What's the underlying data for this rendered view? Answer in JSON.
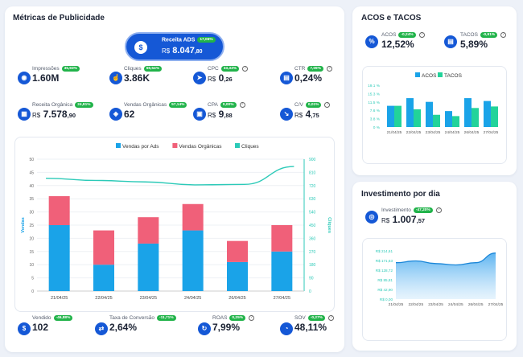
{
  "metrics_card": {
    "title": "Métricas de Publicidade"
  },
  "receita_ads": {
    "label": "Receita ADS",
    "badge": "17,06%",
    "currency": "R$",
    "int": "8.047",
    "dec": ",80"
  },
  "metrics": [
    {
      "id": "impressoes",
      "label": "Impressões",
      "badge": "35,93%",
      "currency": "",
      "int": "1.60M",
      "dec": "",
      "help": false,
      "icon": "eye-icon",
      "glyph": "◉"
    },
    {
      "id": "cliques",
      "label": "Cliques",
      "badge": "69,54%",
      "currency": "",
      "int": "3.86K",
      "dec": "",
      "help": false,
      "icon": "hand-pointer-icon",
      "glyph": "☝"
    },
    {
      "id": "cpc",
      "label": "CPC",
      "badge": "33,33%",
      "currency": "R$",
      "int": "0",
      "dec": ",26",
      "help": true,
      "icon": "cursor-icon",
      "glyph": "➤"
    },
    {
      "id": "ctr",
      "label": "CTR",
      "badge": "7,09%",
      "currency": "",
      "int": "0,24%",
      "dec": "",
      "help": true,
      "icon": "clipboard-icon",
      "glyph": "▤"
    },
    {
      "id": "receita_organica",
      "label": "Receita Orgânica",
      "badge": "24,81%",
      "currency": "R$",
      "int": "7.578",
      "dec": ",90",
      "help": false,
      "icon": "receipt-icon",
      "glyph": "▦"
    },
    {
      "id": "vendas_organicas",
      "label": "Vendas Orgânicas",
      "badge": "57,14%",
      "currency": "",
      "int": "62",
      "dec": "",
      "help": false,
      "icon": "tag-icon",
      "glyph": "◈"
    },
    {
      "id": "cpa",
      "label": "CPA",
      "badge": "0,00%",
      "currency": "R$",
      "int": "9",
      "dec": ",88",
      "help": true,
      "icon": "cart-icon",
      "glyph": "▣"
    },
    {
      "id": "cv",
      "label": "C/V",
      "badge": "0,01%",
      "currency": "R$",
      "int": "4",
      "dec": ",75",
      "help": true,
      "icon": "trend-icon",
      "glyph": "↘"
    }
  ],
  "bottom_metrics": [
    {
      "id": "vendido",
      "label": "Vendido",
      "badge": "-46,88%",
      "value": "102",
      "help": false,
      "icon": "money-icon",
      "glyph": "$"
    },
    {
      "id": "taxa_conversao",
      "label": "Taxa de Conversão",
      "badge": "-11,71%",
      "value": "2,64%",
      "help": false,
      "icon": "transfer-icon",
      "glyph": "⇄"
    },
    {
      "id": "roas",
      "label": "ROAS",
      "badge": "0,25%",
      "value": "7,99%",
      "help": true,
      "icon": "refresh-icon",
      "glyph": "↻"
    },
    {
      "id": "sov",
      "label": "SOV",
      "badge": "-0,27%",
      "value": "48,11%",
      "help": true,
      "icon": "share-icon",
      "glyph": "◔"
    }
  ],
  "acos_card": {
    "title": "ACOS e TACOS",
    "acos": {
      "label": "ACOS",
      "badge": "-0,24%",
      "value": "12,52%"
    },
    "tacos": {
      "label": "TACOS",
      "badge": "-0,91%",
      "value": "5,89%"
    }
  },
  "invest_card": {
    "title": "Investimento por dia",
    "investimento": {
      "label": "Investimento",
      "badge": "-47,20%",
      "currency": "R$",
      "int": "1.007",
      "dec": ",57"
    }
  },
  "colors": {
    "blue": "#1aa3e8",
    "pink": "#f06079",
    "teal": "#2ccab8",
    "green": "#22d39a",
    "navy": "#1558d6"
  },
  "chart_data": [
    {
      "type": "bar",
      "id": "main",
      "categories": [
        "21/04/25",
        "22/04/25",
        "23/04/25",
        "24/04/25",
        "26/04/25",
        "27/04/25"
      ],
      "series": [
        {
          "name": "Vendas por Ads",
          "values": [
            25,
            10,
            18,
            23,
            11,
            15
          ]
        },
        {
          "name": "Vendas Orgânicas",
          "values": [
            11,
            13,
            10,
            10,
            8,
            10
          ]
        },
        {
          "name": "Cliques",
          "type": "line",
          "values": [
            770,
            755,
            745,
            725,
            728,
            850
          ]
        }
      ],
      "ylabel": "Vendas",
      "y2label": "Cliques",
      "ylim": [
        0,
        50
      ],
      "yticks": [
        "0",
        "5",
        "10",
        "15",
        "20",
        "25",
        "30",
        "35",
        "40",
        "45",
        "50"
      ],
      "y2lim": [
        0,
        900
      ],
      "y2ticks": [
        "0",
        "90",
        "180",
        "270",
        "360",
        "450",
        "540",
        "630",
        "720",
        "810",
        "900"
      ]
    },
    {
      "type": "bar",
      "id": "acos",
      "categories": [
        "21/04/25",
        "22/04/25",
        "23/04/25",
        "24/04/25",
        "26/04/25",
        "27/04/25"
      ],
      "series": [
        {
          "name": "ACOS",
          "values": [
            9.7,
            13.2,
            11.5,
            7.3,
            13.2,
            11.9
          ]
        },
        {
          "name": "TACOS",
          "values": [
            9.7,
            8.1,
            5.6,
            5.0,
            8.7,
            9.4
          ]
        }
      ],
      "ylim": [
        0,
        19.1
      ],
      "yticks": [
        "0 %",
        "3.8 %",
        "7.6 %",
        "11.5 %",
        "15.3 %",
        "19.1 %"
      ]
    },
    {
      "type": "area",
      "id": "invest",
      "categories": [
        "21/04/25",
        "22/04/25",
        "23/04/25",
        "24/04/25",
        "26/04/25",
        "27/04/25"
      ],
      "values": [
        162,
        170,
        158,
        152,
        162,
        205
      ],
      "ylim": [
        0,
        214.61
      ],
      "yticks": [
        "R$ 0,00",
        "R$ 42,90",
        "R$ 85,81",
        "R$ 128,72",
        "R$ 171,63",
        "R$ 214,61"
      ]
    }
  ]
}
